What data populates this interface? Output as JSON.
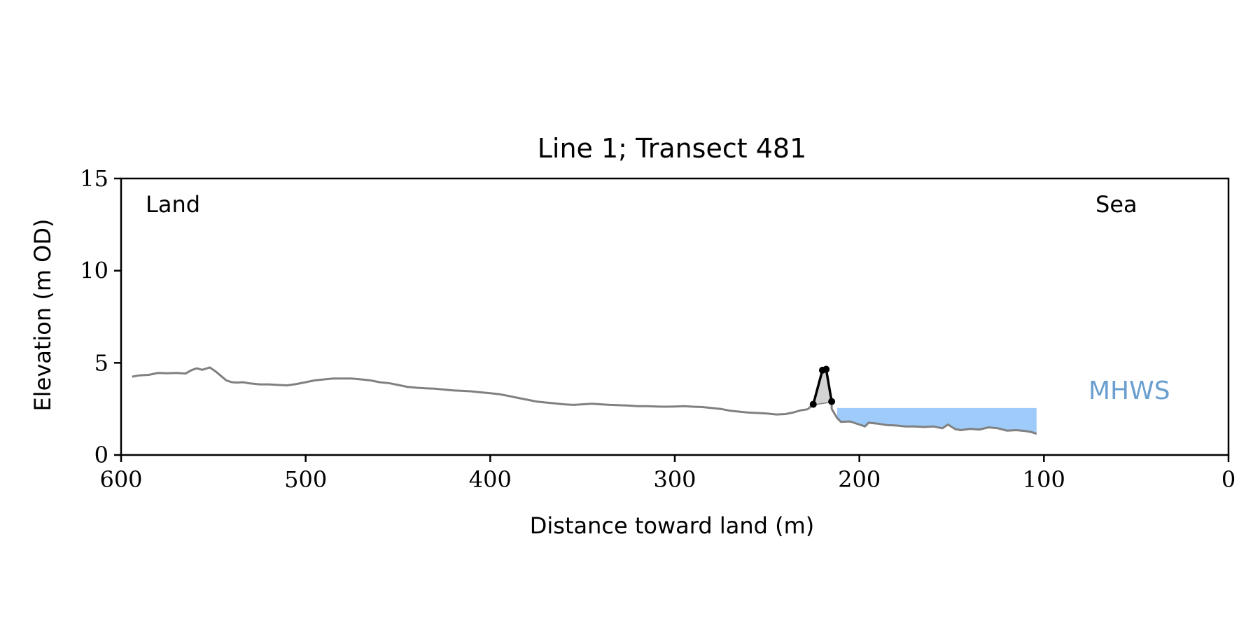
{
  "chart_data": {
    "type": "line",
    "title": "Line 1; Transect 481",
    "xlabel": "Distance toward land (m)",
    "ylabel": "Elevation (m OD)",
    "xlim": [
      600,
      0
    ],
    "ylim": [
      0,
      15
    ],
    "x_ticks": [
      600,
      500,
      400,
      300,
      200,
      100,
      0
    ],
    "y_ticks": [
      0,
      5,
      10,
      15
    ],
    "grid": false,
    "annotations": {
      "left": "Land",
      "right": "Sea",
      "mhws": "MHWS"
    },
    "colors": {
      "profile": "#808080",
      "dune": "#000000",
      "dune_fill": "#d3d3d3",
      "water": "#9ecbfa",
      "mhws_text": "#6a9fcf"
    },
    "series": [
      {
        "kind": "profile",
        "x": [
          594,
          590,
          585,
          580,
          575,
          570,
          565,
          562,
          559,
          556,
          552,
          549,
          546,
          543,
          540,
          537,
          534,
          530,
          525,
          520,
          515,
          510,
          505,
          500,
          495,
          490,
          485,
          480,
          475,
          470,
          465,
          460,
          455,
          450,
          445,
          440,
          435,
          430,
          425,
          420,
          415,
          410,
          405,
          400,
          395,
          390,
          385,
          380,
          375,
          370,
          365,
          360,
          355,
          350,
          345,
          340,
          335,
          330,
          325,
          320,
          315,
          310,
          305,
          300,
          295,
          290,
          285,
          280,
          275,
          270,
          265,
          260,
          255,
          250,
          245,
          240,
          236,
          232,
          228
        ],
        "y": [
          4.25,
          4.32,
          4.35,
          4.45,
          4.43,
          4.45,
          4.42,
          4.6,
          4.7,
          4.62,
          4.75,
          4.55,
          4.3,
          4.05,
          3.95,
          3.93,
          3.95,
          3.88,
          3.83,
          3.83,
          3.8,
          3.78,
          3.85,
          3.95,
          4.05,
          4.1,
          4.15,
          4.15,
          4.15,
          4.1,
          4.05,
          3.95,
          3.9,
          3.8,
          3.7,
          3.65,
          3.62,
          3.6,
          3.55,
          3.5,
          3.48,
          3.45,
          3.4,
          3.35,
          3.3,
          3.2,
          3.1,
          3.0,
          2.9,
          2.85,
          2.8,
          2.75,
          2.72,
          2.75,
          2.78,
          2.75,
          2.72,
          2.7,
          2.68,
          2.65,
          2.65,
          2.63,
          2.62,
          2.63,
          2.65,
          2.62,
          2.6,
          2.55,
          2.5,
          2.4,
          2.35,
          2.3,
          2.28,
          2.25,
          2.2,
          2.22,
          2.3,
          2.42,
          2.48
        ]
      },
      {
        "kind": "profile-seaward",
        "x": [
          215,
          212,
          210,
          205,
          200,
          197,
          195,
          190,
          185,
          180,
          175,
          170,
          165,
          160,
          155,
          152,
          148,
          145,
          140,
          135,
          130,
          125,
          120,
          115,
          110,
          107,
          104
        ],
        "y": [
          2.5,
          2.0,
          1.8,
          1.82,
          1.65,
          1.55,
          1.75,
          1.7,
          1.62,
          1.6,
          1.55,
          1.55,
          1.52,
          1.55,
          1.45,
          1.65,
          1.4,
          1.35,
          1.42,
          1.38,
          1.5,
          1.45,
          1.32,
          1.35,
          1.3,
          1.25,
          1.15
        ]
      },
      {
        "kind": "dune",
        "x": [
          225,
          220,
          218,
          215
        ],
        "y": [
          2.75,
          4.6,
          4.65,
          2.9
        ]
      },
      {
        "kind": "water",
        "x": [
          212,
          104
        ],
        "y_top": 2.55
      }
    ]
  }
}
